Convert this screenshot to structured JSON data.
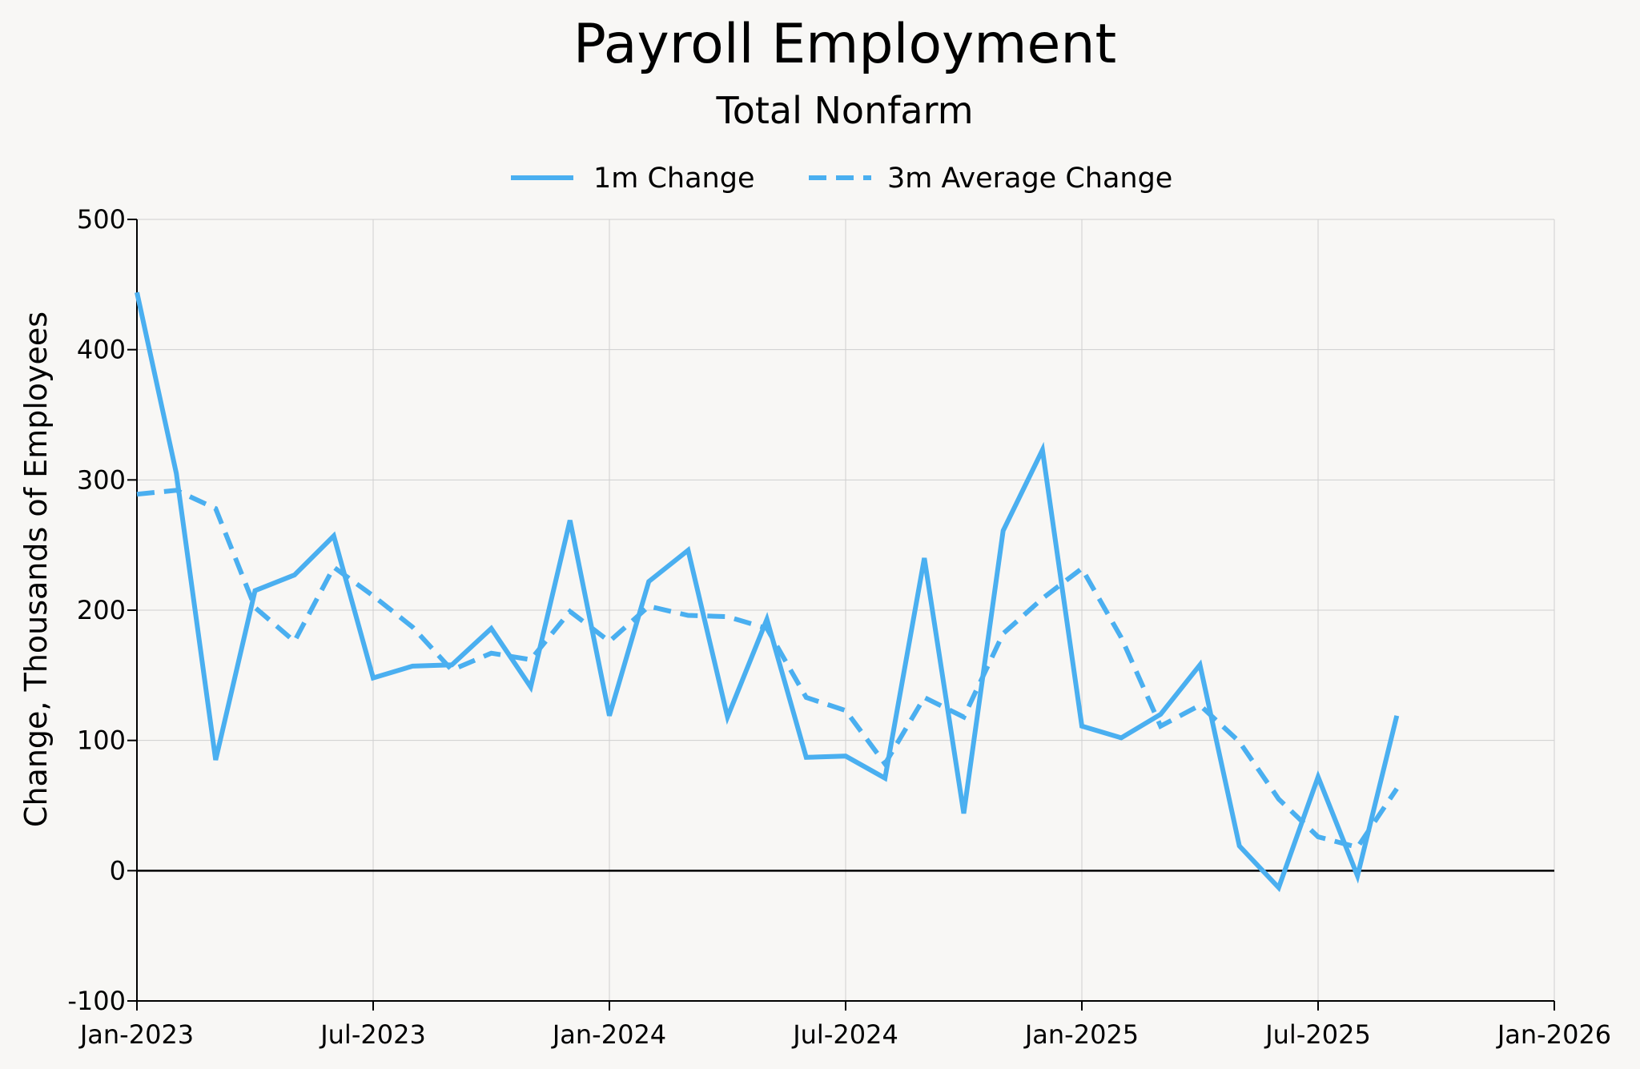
{
  "chart_data": {
    "type": "line",
    "title": "Payroll Employment",
    "subtitle": "Total Nonfarm",
    "ylabel": "Change, Thousands of Employees",
    "xlabel": "",
    "ylim": [
      -100,
      500
    ],
    "yticks": [
      -100,
      0,
      100,
      200,
      300,
      400,
      500
    ],
    "xlim": [
      "2023-01",
      "2026-01"
    ],
    "xticks": [
      "2023-01",
      "2023-07",
      "2024-01",
      "2024-07",
      "2025-01",
      "2025-07",
      "2026-01"
    ],
    "xtick_labels": [
      "Jan-2023",
      "Jul-2023",
      "Jan-2024",
      "Jul-2024",
      "Jan-2025",
      "Jul-2025",
      "Jan-2026"
    ],
    "grid": true,
    "legend_position": "top-center",
    "colors": {
      "line": "#4aaff0",
      "grid": "#cfcfcf",
      "zero_line": "#000000",
      "background": "#f8f7f5"
    },
    "x": [
      "2023-01",
      "2023-02",
      "2023-03",
      "2023-04",
      "2023-05",
      "2023-06",
      "2023-07",
      "2023-08",
      "2023-09",
      "2023-10",
      "2023-11",
      "2023-12",
      "2024-01",
      "2024-02",
      "2024-03",
      "2024-04",
      "2024-05",
      "2024-06",
      "2024-07",
      "2024-08",
      "2024-09",
      "2024-10",
      "2024-11",
      "2024-12",
      "2025-01",
      "2025-02",
      "2025-03",
      "2025-04",
      "2025-05",
      "2025-06",
      "2025-07",
      "2025-08",
      "2025-09"
    ],
    "series": [
      {
        "name": "1m Change",
        "style": "solid",
        "values": [
          444,
          305,
          85,
          215,
          227,
          257,
          148,
          157,
          158,
          186,
          141,
          269,
          119,
          222,
          246,
          118,
          193,
          87,
          88,
          71,
          240,
          44,
          261,
          323,
          111,
          102,
          120,
          158,
          19,
          -13,
          72,
          -4,
          119
        ]
      },
      {
        "name": "3m Average Change",
        "style": "dashed",
        "values": [
          289,
          292,
          278,
          202,
          176,
          233,
          211,
          187,
          154,
          167,
          162,
          199,
          176,
          203,
          196,
          195,
          186,
          133,
          123,
          82,
          133,
          118,
          182,
          209,
          232,
          179,
          111,
          127,
          99,
          55,
          26,
          18,
          63
        ]
      }
    ]
  }
}
